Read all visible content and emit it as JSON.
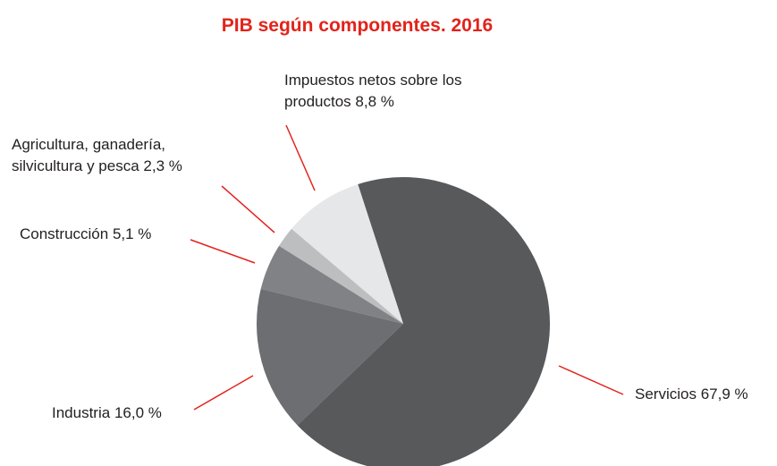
{
  "chart_data": {
    "type": "pie",
    "title": "PIB según componentes. 2016",
    "categories": [
      "Servicios",
      "Industria",
      "Construcción",
      "Agricultura, ganadería, silvicultura y pesca",
      "Impuestos netos sobre los productos"
    ],
    "values": [
      67.9,
      16.0,
      5.1,
      2.3,
      8.8
    ],
    "value_labels": [
      "67,9 %",
      "16,0 %",
      "5,1 %",
      "2,3 %",
      "8,8 %"
    ],
    "colors": [
      "#58595b",
      "#6d6e71",
      "#808285",
      "#bcbec0",
      "#e6e7e8"
    ]
  }
}
